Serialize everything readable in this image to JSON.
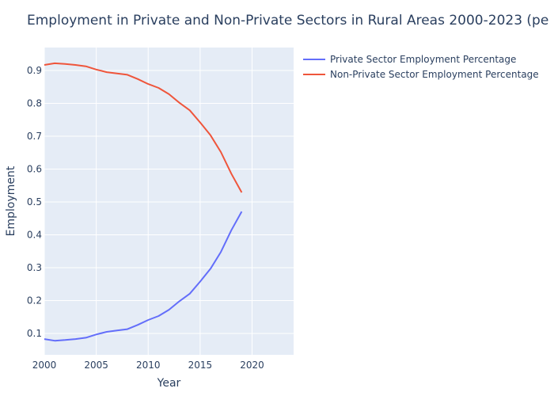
{
  "chart_data": {
    "type": "line",
    "title": "Employment in Private and Non-Private Sectors in Rural Areas 2000-2023 (pe",
    "xlabel": "Year",
    "ylabel": "Employment",
    "xlim": [
      2000,
      2024
    ],
    "ylim": [
      0.035,
      0.97
    ],
    "x_ticks": [
      2000,
      2005,
      2010,
      2015,
      2020
    ],
    "y_ticks": [
      0.1,
      0.2,
      0.3,
      0.4,
      0.5,
      0.6,
      0.7,
      0.8,
      0.9
    ],
    "grid": true,
    "legend_position": "top-right",
    "x": [
      2000,
      2001,
      2002,
      2003,
      2004,
      2005,
      2006,
      2007,
      2008,
      2009,
      2010,
      2011,
      2012,
      2013,
      2014,
      2015,
      2016,
      2017,
      2018,
      2019
    ],
    "series": [
      {
        "name": "Private Sector Employment Percentage",
        "color": "#636efa",
        "values": [
          0.083,
          0.078,
          0.08,
          0.083,
          0.087,
          0.097,
          0.105,
          0.109,
          0.113,
          0.126,
          0.141,
          0.153,
          0.172,
          0.198,
          0.221,
          0.258,
          0.297,
          0.348,
          0.414,
          0.471
        ]
      },
      {
        "name": "Non-Private Sector Employment Percentage",
        "color": "#ef553b",
        "values": [
          0.917,
          0.922,
          0.92,
          0.917,
          0.913,
          0.903,
          0.895,
          0.891,
          0.887,
          0.874,
          0.859,
          0.847,
          0.828,
          0.802,
          0.779,
          0.742,
          0.703,
          0.652,
          0.586,
          0.529
        ]
      }
    ]
  }
}
